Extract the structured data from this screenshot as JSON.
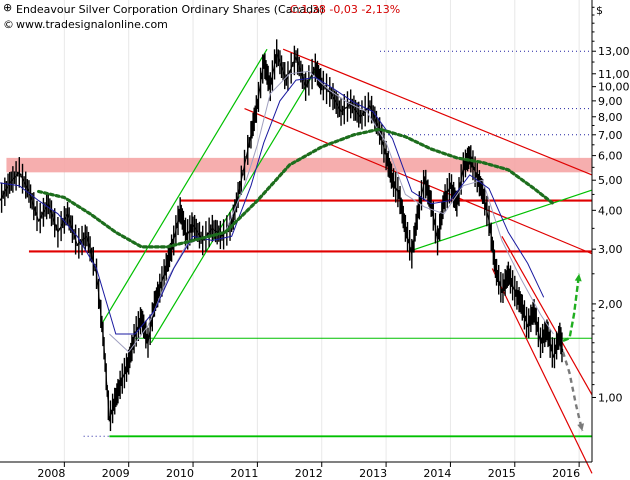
{
  "header": {
    "title": "Endeavour Silver Corporation Ordinary Shares (Canada)",
    "quote": "C:1,38 -0,03 -2,13%",
    "website": "www.tradesignalonline.com",
    "currency": "$"
  },
  "chart_data": {
    "type": "line",
    "title": "Endeavour Silver Corporation Ordinary Shares (Canada)",
    "y_scale": "log",
    "ylim": [
      0.62,
      19.0
    ],
    "xlim": [
      2007.0,
      2016.2
    ],
    "x_ticks": [
      "2008",
      "2009",
      "2010",
      "2011",
      "2012",
      "2013",
      "2014",
      "2015",
      "2016"
    ],
    "x_tick_values": [
      2008,
      2009,
      2010,
      2011,
      2012,
      2013,
      2014,
      2015,
      2016
    ],
    "y_ticks": [
      "13,00",
      "11,00",
      "10,00",
      "9,00",
      "8,00",
      "7,00",
      "6,00",
      "5,00",
      "4,00",
      "3,00",
      "2,00",
      "1,00"
    ],
    "y_tick_values": [
      13,
      11,
      10,
      9,
      8,
      7,
      6,
      5,
      4,
      3,
      2,
      1
    ],
    "series": [
      {
        "kind": "price",
        "color": "#000000",
        "points": [
          [
            2007.0,
            4.3
          ],
          [
            2007.15,
            4.9
          ],
          [
            2007.3,
            5.3
          ],
          [
            2007.45,
            4.6
          ],
          [
            2007.6,
            3.7
          ],
          [
            2007.75,
            4.2
          ],
          [
            2007.9,
            3.4
          ],
          [
            2008.05,
            3.9
          ],
          [
            2008.2,
            3.1
          ],
          [
            2008.35,
            3.3
          ],
          [
            2008.5,
            2.5
          ],
          [
            2008.6,
            1.6
          ],
          [
            2008.7,
            0.85
          ],
          [
            2008.8,
            1.0
          ],
          [
            2008.9,
            1.15
          ],
          [
            2009.0,
            1.3
          ],
          [
            2009.1,
            1.6
          ],
          [
            2009.2,
            1.8
          ],
          [
            2009.3,
            1.5
          ],
          [
            2009.4,
            2.0
          ],
          [
            2009.5,
            2.3
          ],
          [
            2009.6,
            2.7
          ],
          [
            2009.7,
            3.2
          ],
          [
            2009.8,
            4.0
          ],
          [
            2009.9,
            3.3
          ],
          [
            2010.0,
            3.6
          ],
          [
            2010.15,
            3.2
          ],
          [
            2010.3,
            3.5
          ],
          [
            2010.45,
            3.3
          ],
          [
            2010.6,
            3.6
          ],
          [
            2010.75,
            5.0
          ],
          [
            2010.9,
            7.0
          ],
          [
            2011.0,
            8.8
          ],
          [
            2011.1,
            12.0
          ],
          [
            2011.2,
            10.0
          ],
          [
            2011.3,
            12.8
          ],
          [
            2011.45,
            10.5
          ],
          [
            2011.6,
            12.5
          ],
          [
            2011.75,
            10.0
          ],
          [
            2011.9,
            11.5
          ],
          [
            2012.0,
            10.2
          ],
          [
            2012.15,
            9.5
          ],
          [
            2012.3,
            8.3
          ],
          [
            2012.45,
            8.8
          ],
          [
            2012.6,
            8.0
          ],
          [
            2012.75,
            8.7
          ],
          [
            2012.9,
            7.2
          ],
          [
            2013.0,
            6.0
          ],
          [
            2013.1,
            5.0
          ],
          [
            2013.2,
            4.5
          ],
          [
            2013.3,
            3.5
          ],
          [
            2013.4,
            2.9
          ],
          [
            2013.5,
            4.0
          ],
          [
            2013.6,
            5.0
          ],
          [
            2013.7,
            4.2
          ],
          [
            2013.8,
            3.2
          ],
          [
            2013.9,
            4.3
          ],
          [
            2014.0,
            4.8
          ],
          [
            2014.1,
            4.2
          ],
          [
            2014.2,
            5.5
          ],
          [
            2014.3,
            6.0
          ],
          [
            2014.4,
            5.2
          ],
          [
            2014.5,
            4.6
          ],
          [
            2014.6,
            3.7
          ],
          [
            2014.7,
            2.6
          ],
          [
            2014.8,
            2.2
          ],
          [
            2014.9,
            2.5
          ],
          [
            2015.0,
            2.2
          ],
          [
            2015.1,
            2.0
          ],
          [
            2015.2,
            1.7
          ],
          [
            2015.3,
            1.9
          ],
          [
            2015.4,
            1.5
          ],
          [
            2015.5,
            1.65
          ],
          [
            2015.6,
            1.35
          ],
          [
            2015.7,
            1.6
          ],
          [
            2015.75,
            1.38
          ]
        ]
      },
      {
        "kind": "moving-average-fast",
        "color": "#a0a0c0",
        "points": [
          [
            2008.7,
            1.6
          ],
          [
            2009.0,
            1.4
          ],
          [
            2009.3,
            1.7
          ],
          [
            2009.6,
            2.4
          ],
          [
            2009.9,
            3.1
          ],
          [
            2010.2,
            3.3
          ],
          [
            2010.5,
            3.4
          ],
          [
            2010.8,
            4.8
          ],
          [
            2011.0,
            6.5
          ],
          [
            2011.2,
            9.5
          ],
          [
            2011.5,
            11.0
          ],
          [
            2011.8,
            11.2
          ],
          [
            2012.1,
            9.8
          ],
          [
            2012.4,
            8.9
          ],
          [
            2012.7,
            8.3
          ],
          [
            2013.0,
            6.6
          ],
          [
            2013.3,
            4.5
          ],
          [
            2013.6,
            4.1
          ],
          [
            2013.9,
            3.9
          ],
          [
            2014.2,
            4.8
          ],
          [
            2014.5,
            5.0
          ],
          [
            2014.8,
            3.2
          ],
          [
            2015.1,
            2.4
          ],
          [
            2015.4,
            1.85
          ],
          [
            2015.6,
            1.6
          ]
        ]
      },
      {
        "kind": "moving-average-slow",
        "color": "#1a1aa0",
        "points": [
          [
            2007.0,
            4.9
          ],
          [
            2007.3,
            4.8
          ],
          [
            2007.6,
            4.3
          ],
          [
            2007.9,
            3.9
          ],
          [
            2008.2,
            3.3
          ],
          [
            2008.5,
            2.6
          ],
          [
            2008.8,
            1.6
          ],
          [
            2009.1,
            1.6
          ],
          [
            2009.4,
            1.9
          ],
          [
            2009.7,
            2.6
          ],
          [
            2010.0,
            3.3
          ],
          [
            2010.3,
            3.2
          ],
          [
            2010.6,
            3.3
          ],
          [
            2010.9,
            4.8
          ],
          [
            2011.1,
            6.6
          ],
          [
            2011.35,
            9.0
          ],
          [
            2011.6,
            10.5
          ],
          [
            2011.9,
            10.7
          ],
          [
            2012.2,
            9.8
          ],
          [
            2012.5,
            8.9
          ],
          [
            2012.8,
            8.3
          ],
          [
            2013.1,
            6.8
          ],
          [
            2013.4,
            4.6
          ],
          [
            2013.7,
            4.2
          ],
          [
            2014.0,
            4.3
          ],
          [
            2014.3,
            5.2
          ],
          [
            2014.6,
            4.7
          ],
          [
            2014.9,
            3.4
          ],
          [
            2015.2,
            2.7
          ],
          [
            2015.45,
            2.1
          ]
        ]
      },
      {
        "kind": "long-term-average-dotted",
        "color": "#1d6e1d",
        "points": [
          [
            2007.6,
            4.6
          ],
          [
            2008.0,
            4.4
          ],
          [
            2008.4,
            3.9
          ],
          [
            2008.8,
            3.4
          ],
          [
            2009.2,
            3.05
          ],
          [
            2009.6,
            3.05
          ],
          [
            2010.0,
            3.2
          ],
          [
            2010.5,
            3.4
          ],
          [
            2011.0,
            4.3
          ],
          [
            2011.5,
            5.6
          ],
          [
            2012.0,
            6.4
          ],
          [
            2012.5,
            7.0
          ],
          [
            2012.9,
            7.3
          ],
          [
            2013.3,
            6.9
          ],
          [
            2013.7,
            6.3
          ],
          [
            2014.1,
            5.9
          ],
          [
            2014.5,
            5.7
          ],
          [
            2014.9,
            5.4
          ],
          [
            2015.3,
            4.7
          ],
          [
            2015.6,
            4.2
          ]
        ]
      }
    ],
    "channels": [
      {
        "color": "#00c000",
        "from": [
          2008.6,
          1.75
        ],
        "to": [
          2011.15,
          13.2
        ]
      },
      {
        "color": "#00c000",
        "from": [
          2009.35,
          1.5
        ],
        "to": [
          2011.95,
          11.7
        ]
      },
      {
        "color": "#e00000",
        "from": [
          2011.4,
          13.2
        ],
        "to": [
          2016.2,
          5.2
        ]
      },
      {
        "color": "#e00000",
        "from": [
          2010.8,
          8.5
        ],
        "to": [
          2016.2,
          2.9
        ]
      },
      {
        "color": "#e00000",
        "from": [
          2014.65,
          2.6
        ],
        "to": [
          2016.2,
          0.57
        ]
      },
      {
        "color": "#e00000",
        "from": [
          2014.8,
          3.3
        ],
        "to": [
          2016.2,
          1.02
        ]
      },
      {
        "color": "#00c000",
        "from": [
          2013.35,
          2.95
        ],
        "to": [
          2016.2,
          4.65
        ]
      }
    ],
    "horizontal_levels": [
      {
        "color": "#e00000",
        "value": 2.95,
        "from": 2007.45,
        "width": 2.2
      },
      {
        "color": "#e00000",
        "value": 4.3,
        "from": 2009.8,
        "width": 2.2
      },
      {
        "color": "#00c000",
        "value": 1.55,
        "from": 2009.1,
        "width": 1
      },
      {
        "color": "#00c000",
        "value": 0.75,
        "from": 2008.7,
        "width": 1.8
      }
    ],
    "resistance_zone": {
      "color": "#f4a0a0",
      "low": 5.3,
      "high": 5.9
    },
    "dotted_reference_levels": [
      13.0,
      8.5,
      7.0
    ],
    "projections": [
      {
        "kind": "up",
        "color": "#1fae1f",
        "points": [
          [
            2015.75,
            1.52
          ],
          [
            2015.85,
            1.55
          ],
          [
            2015.92,
            1.85
          ],
          [
            2016.0,
            2.5
          ]
        ]
      },
      {
        "kind": "down",
        "color": "#7a7a7a",
        "points": [
          [
            2015.75,
            1.4
          ],
          [
            2015.85,
            1.2
          ],
          [
            2015.95,
            0.95
          ],
          [
            2016.05,
            0.78
          ]
        ]
      }
    ],
    "grid": true
  }
}
